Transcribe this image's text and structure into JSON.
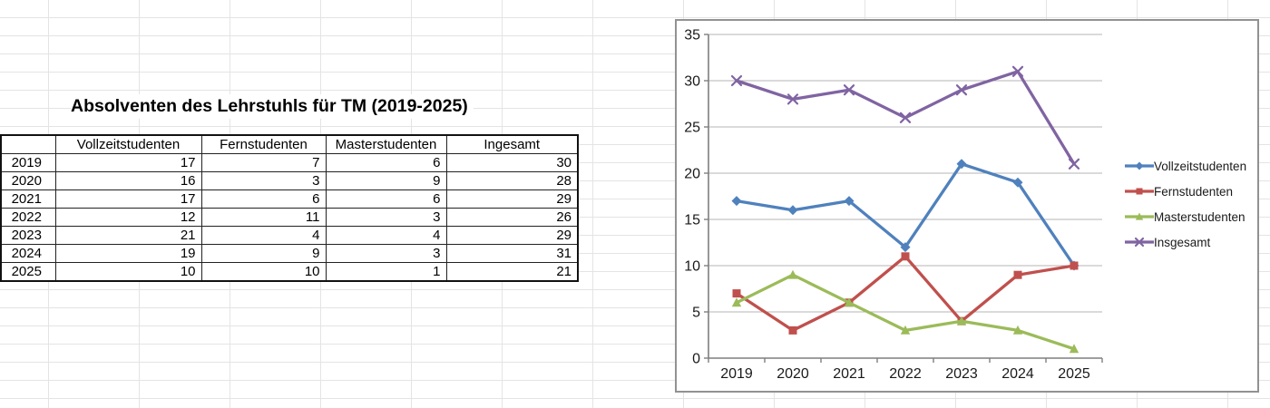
{
  "sheet": {
    "title": "Absolventen des Lehrstuhls für TM (2019-2025)",
    "table": {
      "corner_label": "",
      "columns": [
        "Vollzeitstudenten",
        "Fernstudenten",
        "Masterstudenten",
        "Ingesamt"
      ],
      "rows": [
        {
          "year": "2019",
          "values": [
            17,
            7,
            6,
            30
          ]
        },
        {
          "year": "2020",
          "values": [
            16,
            3,
            9,
            28
          ]
        },
        {
          "year": "2021",
          "values": [
            17,
            6,
            6,
            29
          ]
        },
        {
          "year": "2022",
          "values": [
            12,
            11,
            3,
            26
          ]
        },
        {
          "year": "2023",
          "values": [
            21,
            4,
            4,
            29
          ]
        },
        {
          "year": "2024",
          "values": [
            19,
            9,
            3,
            31
          ]
        },
        {
          "year": "2025",
          "values": [
            10,
            10,
            1,
            21
          ]
        }
      ]
    }
  },
  "chart_data": {
    "type": "line",
    "title": "",
    "xlabel": "",
    "ylabel": "",
    "categories": [
      "2019",
      "2020",
      "2021",
      "2022",
      "2023",
      "2024",
      "2025"
    ],
    "series": [
      {
        "name": "Vollzeitstudenten",
        "color": "#4F81BD",
        "marker": "diamond",
        "values": [
          17,
          16,
          17,
          12,
          21,
          19,
          10
        ]
      },
      {
        "name": "Fernstudenten",
        "color": "#C0504D",
        "marker": "square",
        "values": [
          7,
          3,
          6,
          11,
          4,
          9,
          10
        ]
      },
      {
        "name": "Masterstudenten",
        "color": "#9BBB59",
        "marker": "triangle",
        "values": [
          6,
          9,
          6,
          3,
          4,
          3,
          1
        ]
      },
      {
        "name": "Insgesamt",
        "color": "#8064A2",
        "marker": "x",
        "values": [
          30,
          28,
          29,
          26,
          29,
          31,
          21
        ]
      }
    ],
    "ylim": [
      0,
      35
    ],
    "yticks": [
      0,
      5,
      10,
      15,
      20,
      25,
      30,
      35
    ],
    "grid": "horizontal",
    "legend_position": "right"
  }
}
